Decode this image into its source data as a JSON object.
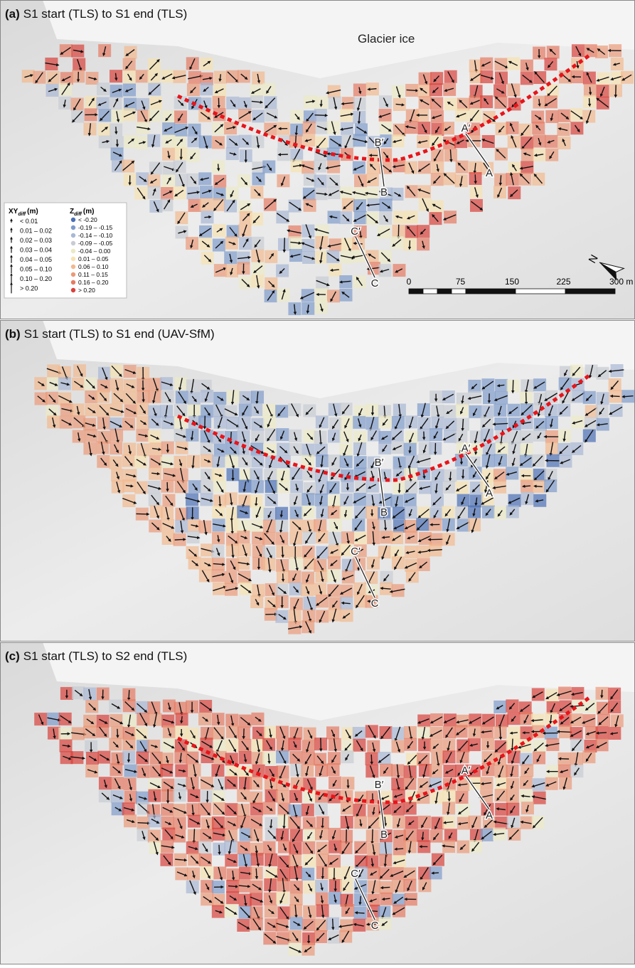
{
  "panels": [
    {
      "label": "(a)",
      "title": "S1 start (TLS) to S1 end (TLS)"
    },
    {
      "label": "(b)",
      "title": "S1 start (TLS) to S1 end (UAV-SfM)"
    },
    {
      "label": "(c)",
      "title": "S1 start (TLS) to S2 end (TLS)"
    }
  ],
  "glacier_label": "Glacier ice",
  "profile_labels": [
    "A",
    "A′",
    "B",
    "B′",
    "C",
    "C′"
  ],
  "north_label": "N",
  "scale_bar": {
    "labels": [
      "0",
      "75",
      "150",
      "225",
      "300 m"
    ]
  },
  "legend": {
    "xy": {
      "title": "XY",
      "sub": "diff",
      "unit": "(m)",
      "classes": [
        "< 0.01",
        "0.01 – 0.02",
        "0.02 – 0.03",
        "0.03 – 0.04",
        "0.04 – 0.05",
        "0.05 – 0.10",
        "0.10 – 0.20",
        "> 0.20"
      ]
    },
    "z": {
      "title": "Z",
      "sub": "diff",
      "unit": "(m)",
      "classes": [
        "< -0.20",
        "-0.19 – -0.15",
        "-0.14 – -0.10",
        "-0.09 – -0.05",
        "-0.04 – 0.00",
        "0.01 – 0.05",
        "0.06 – 0.10",
        "0.11 – 0.15",
        "0.16 – 0.20",
        "> 0.20"
      ],
      "colors": [
        "#4a6fb5",
        "#7f9bcb",
        "#a9b8d4",
        "#c8ccd3",
        "#ece9c5",
        "#f7e2b0",
        "#f2b98e",
        "#eb9a79",
        "#e57b62",
        "#d9413a"
      ]
    }
  }
}
